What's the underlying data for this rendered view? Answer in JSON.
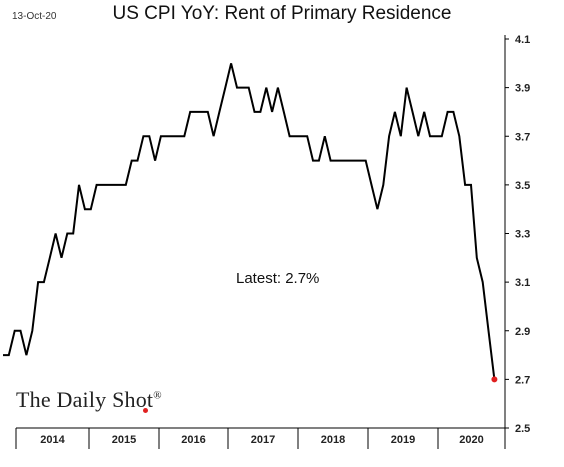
{
  "header": {
    "date": "13-Oct-20",
    "title": "US CPI YoY: Rent of Primary Residence"
  },
  "annotation": {
    "latest_label": "Latest:  2.7%"
  },
  "brand": {
    "name": "The Daily Shot",
    "mark": "®"
  },
  "colors": {
    "line": "#000000",
    "last_point": "#e02020",
    "axis": "#000000"
  },
  "chart_data": {
    "type": "line",
    "title": "US CPI YoY: Rent of Primary Residence",
    "xlabel": "",
    "ylabel": "",
    "ylim": [
      2.5,
      4.1
    ],
    "yticks": [
      "4.1",
      "3.9",
      "3.7",
      "3.5",
      "3.3",
      "3.1",
      "2.9",
      "2.7",
      "2.5"
    ],
    "xticks": [
      "2014",
      "2015",
      "2016",
      "2017",
      "2018",
      "2019",
      "2020"
    ],
    "x_start": "2013-08",
    "frequency": "monthly",
    "grid": false,
    "series": [
      {
        "values": [
          2.8,
          2.8,
          2.9,
          2.9,
          2.8,
          2.9,
          3.1,
          3.1,
          3.2,
          3.3,
          3.2,
          3.3,
          3.3,
          3.5,
          3.4,
          3.4,
          3.5,
          3.5,
          3.5,
          3.5,
          3.5,
          3.5,
          3.6,
          3.6,
          3.7,
          3.7,
          3.6,
          3.7,
          3.7,
          3.7,
          3.7,
          3.7,
          3.8,
          3.8,
          3.8,
          3.8,
          3.7,
          3.8,
          3.9,
          4.0,
          3.9,
          3.9,
          3.9,
          3.8,
          3.8,
          3.9,
          3.8,
          3.9,
          3.8,
          3.7,
          3.7,
          3.7,
          3.7,
          3.6,
          3.6,
          3.7,
          3.6,
          3.6,
          3.6,
          3.6,
          3.6,
          3.6,
          3.6,
          3.5,
          3.4,
          3.5,
          3.7,
          3.8,
          3.7,
          3.9,
          3.8,
          3.7,
          3.8,
          3.7,
          3.7,
          3.7,
          3.8,
          3.8,
          3.7,
          3.5,
          3.5,
          3.2,
          3.1,
          2.9,
          2.7
        ],
        "last_value_marker": 2.7
      }
    ]
  }
}
